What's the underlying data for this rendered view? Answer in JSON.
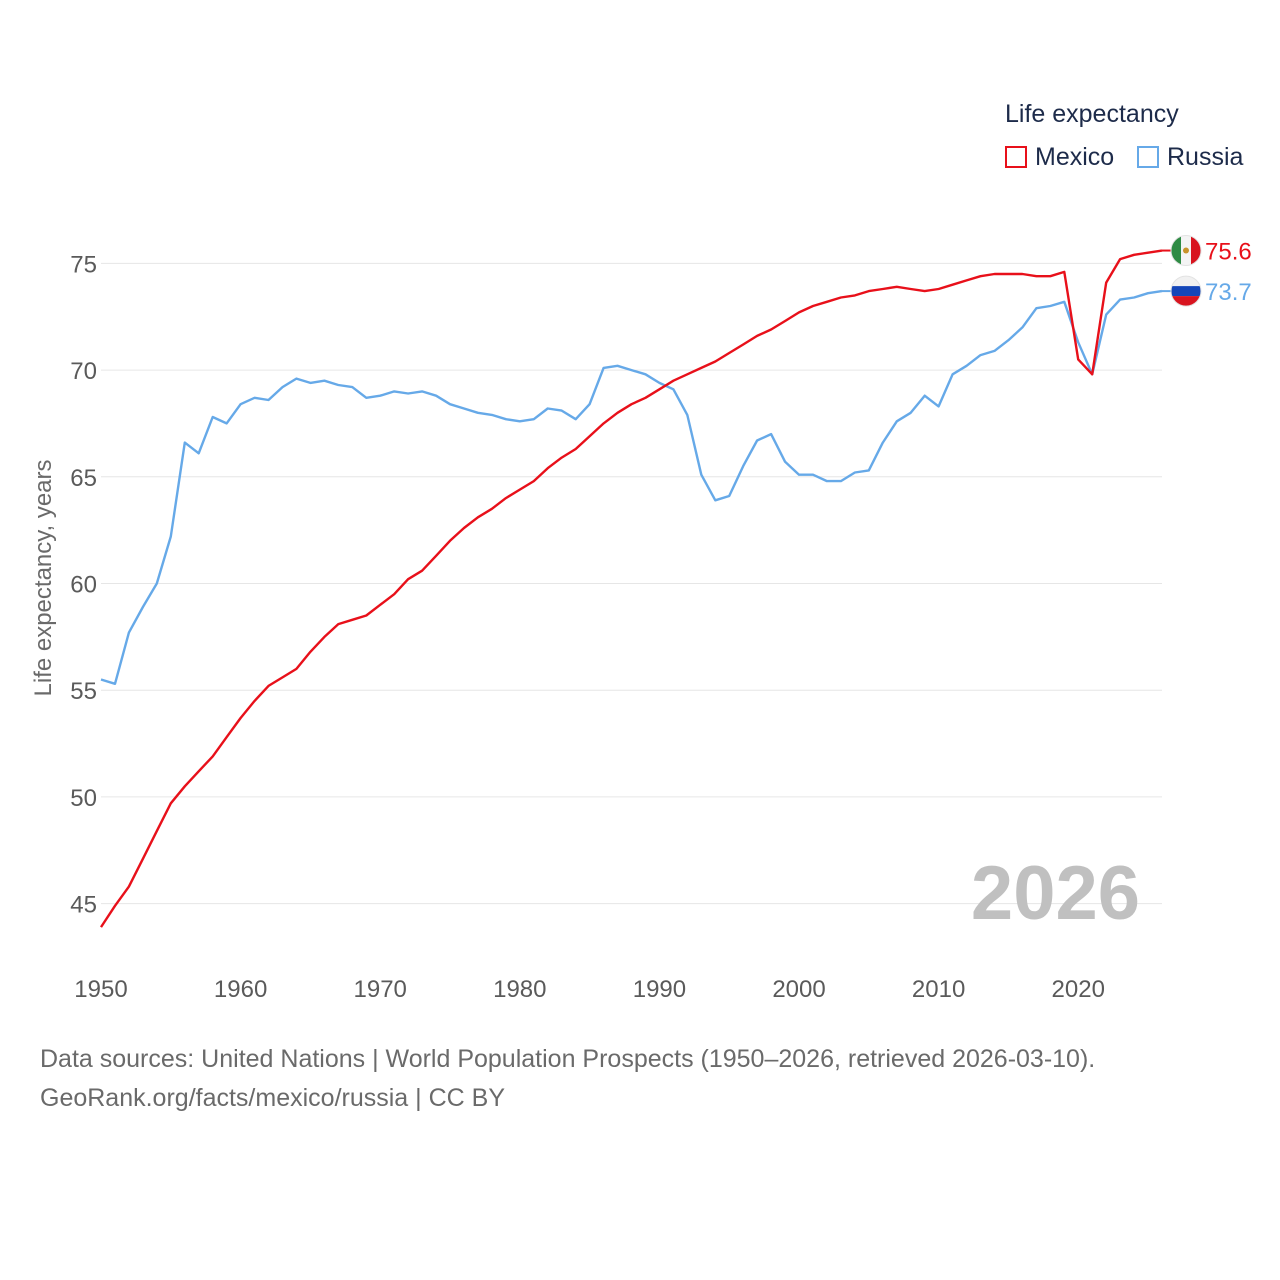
{
  "chart_data": {
    "type": "line",
    "title": "",
    "ylabel": "Life expectancy, years",
    "xlabel": "",
    "xlim": [
      1950,
      2026
    ],
    "ylim": [
      42.5,
      77.5
    ],
    "x_ticks": [
      1950,
      1960,
      1970,
      1980,
      1990,
      2000,
      2010,
      2020
    ],
    "x_tick_labels": [
      "1950",
      "1960",
      "1970",
      "1980",
      "1990",
      "2000",
      "2010",
      "2020"
    ],
    "y_ticks": [
      45,
      50,
      55,
      60,
      65,
      70,
      75
    ],
    "y_tick_labels": [
      "45",
      "50",
      "55",
      "60",
      "65",
      "70",
      "75"
    ],
    "legend_title": "Life expectancy",
    "legend_position": "top-right",
    "x": [
      1950,
      1951,
      1952,
      1953,
      1954,
      1955,
      1956,
      1957,
      1958,
      1959,
      1960,
      1961,
      1962,
      1963,
      1964,
      1965,
      1966,
      1967,
      1968,
      1969,
      1970,
      1971,
      1972,
      1973,
      1974,
      1975,
      1976,
      1977,
      1978,
      1979,
      1980,
      1981,
      1982,
      1983,
      1984,
      1985,
      1986,
      1987,
      1988,
      1989,
      1990,
      1991,
      1992,
      1993,
      1994,
      1995,
      1996,
      1997,
      1998,
      1999,
      2000,
      2001,
      2002,
      2003,
      2004,
      2005,
      2006,
      2007,
      2008,
      2009,
      2010,
      2011,
      2012,
      2013,
      2014,
      2015,
      2016,
      2017,
      2018,
      2019,
      2020,
      2021,
      2022,
      2023,
      2024,
      2025,
      2026
    ],
    "series": [
      {
        "name": "Mexico",
        "color": "#e8101a",
        "end_label": "75.6",
        "flag": "mexico-flag",
        "values": [
          43.9,
          44.9,
          45.8,
          47.1,
          48.4,
          49.7,
          50.5,
          51.2,
          51.9,
          52.8,
          53.7,
          54.5,
          55.2,
          55.6,
          56.0,
          56.8,
          57.5,
          58.1,
          58.3,
          58.5,
          59.0,
          59.5,
          60.2,
          60.6,
          61.3,
          62.0,
          62.6,
          63.1,
          63.5,
          64.0,
          64.4,
          64.8,
          65.4,
          65.9,
          66.3,
          66.9,
          67.5,
          68.0,
          68.4,
          68.7,
          69.1,
          69.5,
          69.8,
          70.1,
          70.4,
          70.8,
          71.2,
          71.6,
          71.9,
          72.3,
          72.7,
          73.0,
          73.2,
          73.4,
          73.5,
          73.7,
          73.8,
          73.9,
          73.8,
          73.7,
          73.8,
          74.0,
          74.2,
          74.4,
          74.5,
          74.5,
          74.5,
          74.4,
          74.4,
          74.6,
          70.5,
          69.8,
          74.1,
          75.2,
          75.4,
          75.5,
          75.6
        ]
      },
      {
        "name": "Russia",
        "color": "#66a9e8",
        "end_label": "73.7",
        "flag": "russia-flag",
        "values": [
          55.5,
          55.3,
          57.7,
          58.9,
          60.0,
          62.2,
          66.6,
          66.1,
          67.8,
          67.5,
          68.4,
          68.7,
          68.6,
          69.2,
          69.6,
          69.4,
          69.5,
          69.3,
          69.2,
          68.7,
          68.8,
          69.0,
          68.9,
          69.0,
          68.8,
          68.4,
          68.2,
          68.0,
          67.9,
          67.7,
          67.6,
          67.7,
          68.2,
          68.1,
          67.7,
          68.4,
          70.1,
          70.2,
          70.0,
          69.8,
          69.4,
          69.1,
          67.9,
          65.1,
          63.9,
          64.1,
          65.5,
          66.7,
          67.0,
          65.7,
          65.1,
          65.1,
          64.8,
          64.8,
          65.2,
          65.3,
          66.6,
          67.6,
          68.0,
          68.8,
          68.3,
          69.8,
          70.2,
          70.7,
          70.9,
          71.4,
          72.0,
          72.9,
          73.0,
          73.2,
          71.3,
          69.8,
          72.6,
          73.3,
          73.4,
          73.6,
          73.7
        ]
      }
    ]
  },
  "year_stamp": "2026",
  "footer": {
    "line1": "Data sources: United Nations | World Population Prospects (1950–2026, retrieved 2026-03-10).",
    "line2": "GeoRank.org/facts/mexico/russia | CC BY"
  }
}
